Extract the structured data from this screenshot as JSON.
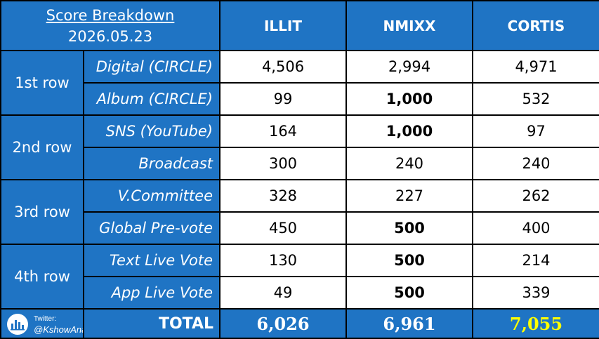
{
  "chart_data": {
    "type": "table",
    "title": "Score Breakdown",
    "date": "2026.05.23",
    "columns": [
      "ILLIT",
      "NMIXX",
      "CORTIS"
    ],
    "groups": [
      {
        "label": "1st row",
        "rows": [
          {
            "label": "Digital (CIRCLE)",
            "values": [
              "4,506",
              "2,994",
              "4,971"
            ],
            "bold": [
              false,
              false,
              false
            ]
          },
          {
            "label": "Album (CIRCLE)",
            "values": [
              "99",
              "1,000",
              "532"
            ],
            "bold": [
              false,
              true,
              false
            ]
          }
        ]
      },
      {
        "label": "2nd row",
        "rows": [
          {
            "label": "SNS (YouTube)",
            "values": [
              "164",
              "1,000",
              "97"
            ],
            "bold": [
              false,
              true,
              false
            ]
          },
          {
            "label": "Broadcast",
            "values": [
              "300",
              "240",
              "240"
            ],
            "bold": [
              false,
              false,
              false
            ]
          }
        ]
      },
      {
        "label": "3rd row",
        "rows": [
          {
            "label": "V.Committee",
            "values": [
              "328",
              "227",
              "262"
            ],
            "bold": [
              false,
              false,
              false
            ]
          },
          {
            "label": "Global Pre-vote",
            "values": [
              "450",
              "500",
              "400"
            ],
            "bold": [
              false,
              true,
              false
            ]
          }
        ]
      },
      {
        "label": "4th row",
        "rows": [
          {
            "label": "Text Live Vote",
            "values": [
              "130",
              "500",
              "214"
            ],
            "bold": [
              false,
              true,
              false
            ]
          },
          {
            "label": "App Live Vote",
            "values": [
              "49",
              "500",
              "339"
            ],
            "bold": [
              false,
              true,
              false
            ]
          }
        ]
      }
    ],
    "total": {
      "label": "TOTAL",
      "values": [
        "6,026",
        "6,961",
        "7,055"
      ],
      "winner_index": 2
    }
  },
  "footer": {
    "twitter_label": "Twitter:",
    "handle": "@KshowAnalysis",
    "logo_icon": "bar-chart-icon"
  },
  "colors": {
    "header_blue": "#1f74c4",
    "cell_white": "#ffffff",
    "border": "#000000",
    "winner_yellow": "#ffff00",
    "text_white": "#ffffff"
  }
}
